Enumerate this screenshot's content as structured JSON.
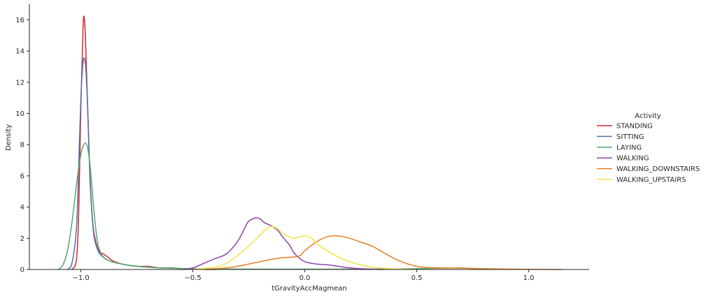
{
  "chart_data": {
    "type": "line",
    "subtype": "kde",
    "xlabel": "tGravityAccMagmean",
    "ylabel": "Density",
    "xlim": [
      -1.23,
      1.27
    ],
    "ylim": [
      0,
      17
    ],
    "xticks": [
      -1.0,
      -0.5,
      0.0,
      0.5,
      1.0
    ],
    "xtick_labels": [
      "−1.0",
      "−0.5",
      "0.0",
      "0.5",
      "1.0"
    ],
    "yticks": [
      0,
      2,
      4,
      6,
      8,
      10,
      12,
      14,
      16
    ],
    "ytick_labels": [
      "0",
      "2",
      "4",
      "6",
      "8",
      "10",
      "12",
      "14",
      "16"
    ],
    "grid": false,
    "legend": {
      "title": "Activity",
      "placement": "right"
    },
    "series": [
      {
        "name": "STANDING",
        "color": "#d62728",
        "x": [
          -1.04,
          -1.02,
          -1.01,
          -1.0,
          -0.99,
          -0.985,
          -0.98,
          -0.97,
          -0.96,
          -0.95,
          -0.94,
          -0.92,
          -0.9,
          -0.88,
          -0.85,
          -0.8,
          -0.75,
          -0.7,
          -0.65,
          -0.6,
          -0.55,
          -0.5,
          -0.45,
          -0.4
        ],
        "y": [
          0.0,
          0.6,
          3.5,
          10.5,
          15.6,
          16.1,
          15.0,
          10.5,
          6.0,
          3.5,
          2.2,
          1.2,
          1.0,
          0.8,
          0.5,
          0.3,
          0.2,
          0.2,
          0.1,
          0.1,
          0.05,
          0.02,
          0.01,
          0.0
        ]
      },
      {
        "name": "SITTING",
        "color": "#4c72b0",
        "x": [
          -1.06,
          -1.04,
          -1.02,
          -1.01,
          -1.0,
          -0.99,
          -0.98,
          -0.97,
          -0.96,
          -0.95,
          -0.94,
          -0.92,
          -0.9,
          -0.88,
          -0.85,
          -0.8,
          -0.75,
          -0.7,
          -0.65,
          -0.6,
          -0.55,
          -0.5,
          -0.45,
          -0.4
        ],
        "y": [
          0.0,
          0.4,
          2.6,
          6.5,
          11.0,
          13.3,
          13.2,
          10.5,
          6.2,
          3.5,
          2.0,
          1.1,
          0.8,
          0.6,
          0.45,
          0.3,
          0.2,
          0.15,
          0.1,
          0.1,
          0.05,
          0.03,
          0.01,
          0.0
        ]
      },
      {
        "name": "LAYING",
        "color": "#55a868",
        "x": [
          -1.1,
          -1.08,
          -1.06,
          -1.04,
          -1.02,
          -1.0,
          -0.99,
          -0.98,
          -0.97,
          -0.96,
          -0.95,
          -0.94,
          -0.93,
          -0.92,
          -0.9,
          -0.88,
          -0.85,
          -0.8,
          -0.75,
          -0.7,
          -0.65,
          -0.6,
          -0.5,
          -0.4,
          -0.2,
          0.0,
          0.2,
          0.4,
          0.6,
          0.7,
          0.8
        ],
        "y": [
          0.0,
          0.3,
          1.2,
          3.0,
          5.4,
          7.4,
          7.9,
          8.1,
          7.8,
          6.8,
          5.2,
          3.5,
          2.2,
          1.4,
          0.8,
          0.6,
          0.45,
          0.3,
          0.2,
          0.15,
          0.1,
          0.08,
          0.05,
          0.03,
          0.02,
          0.02,
          0.02,
          0.03,
          0.08,
          0.1,
          0.0
        ]
      },
      {
        "name": "WALKING",
        "color": "#8e44ad",
        "x": [
          -0.55,
          -0.5,
          -0.45,
          -0.4,
          -0.35,
          -0.3,
          -0.27,
          -0.25,
          -0.22,
          -0.2,
          -0.18,
          -0.15,
          -0.12,
          -0.1,
          -0.07,
          -0.05,
          -0.03,
          0.0,
          0.05,
          0.1,
          0.15,
          0.2,
          0.25,
          0.3,
          0.35
        ],
        "y": [
          0.0,
          0.1,
          0.4,
          0.7,
          1.0,
          1.8,
          2.6,
          3.1,
          3.3,
          3.25,
          3.0,
          2.8,
          2.5,
          2.1,
          1.6,
          1.1,
          0.8,
          0.5,
          0.35,
          0.3,
          0.2,
          0.1,
          0.05,
          0.02,
          0.0
        ]
      },
      {
        "name": "WALKING_DOWNSTAIRS",
        "color": "#e67e22",
        "x": [
          -0.45,
          -0.35,
          -0.3,
          -0.25,
          -0.2,
          -0.15,
          -0.1,
          -0.05,
          -0.02,
          0.0,
          0.05,
          0.1,
          0.15,
          0.2,
          0.25,
          0.3,
          0.35,
          0.4,
          0.45,
          0.5,
          0.55,
          0.6,
          0.7,
          0.8,
          0.9,
          1.0,
          1.1,
          1.15
        ],
        "y": [
          0.0,
          0.1,
          0.2,
          0.35,
          0.5,
          0.65,
          0.75,
          0.8,
          0.9,
          1.2,
          1.75,
          2.1,
          2.15,
          2.0,
          1.75,
          1.5,
          1.1,
          0.7,
          0.4,
          0.2,
          0.12,
          0.1,
          0.08,
          0.05,
          0.03,
          0.01,
          0.0,
          0.0
        ]
      },
      {
        "name": "WALKING_UPSTAIRS",
        "color": "#f0e442",
        "x": [
          -0.5,
          -0.4,
          -0.35,
          -0.3,
          -0.25,
          -0.2,
          -0.17,
          -0.15,
          -0.12,
          -0.1,
          -0.07,
          -0.05,
          -0.02,
          0.0,
          0.03,
          0.05,
          0.1,
          0.15,
          0.2,
          0.25,
          0.3,
          0.35,
          0.4,
          0.45,
          0.5
        ],
        "y": [
          0.0,
          0.15,
          0.4,
          0.9,
          1.5,
          2.2,
          2.6,
          2.75,
          2.6,
          2.3,
          2.1,
          2.0,
          2.1,
          2.15,
          2.0,
          1.7,
          1.2,
          0.8,
          0.5,
          0.3,
          0.15,
          0.08,
          0.04,
          0.01,
          0.0
        ]
      }
    ]
  }
}
